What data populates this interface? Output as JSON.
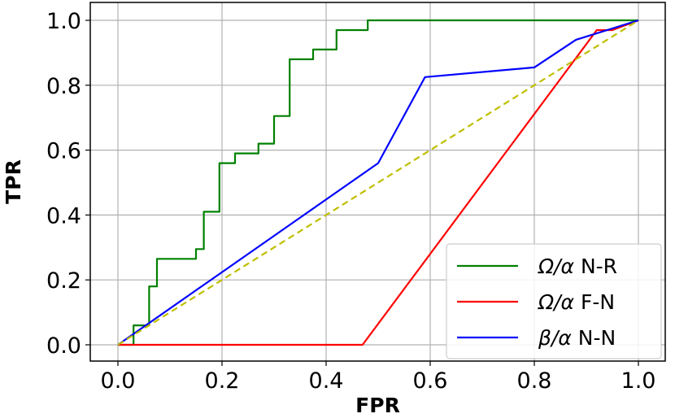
{
  "chart_data": {
    "type": "line",
    "title": "",
    "xlabel": "FPR",
    "ylabel": "TPR",
    "xlim": [
      -0.05,
      1.03
    ],
    "ylim": [
      -0.05,
      1.03
    ],
    "xticks": [
      0.0,
      0.2,
      0.4,
      0.6,
      0.8,
      1.0
    ],
    "yticks": [
      0.0,
      0.2,
      0.4,
      0.6,
      0.8,
      1.0
    ],
    "xtick_labels": [
      "0.0",
      "0.2",
      "0.4",
      "0.6",
      "0.8",
      "1.0"
    ],
    "ytick_labels": [
      "0.0",
      "0.2",
      "0.4",
      "0.6",
      "0.8",
      "1.0"
    ],
    "grid": true,
    "legend_position": "bottom-right",
    "series": [
      {
        "name": "Ω/α N-R",
        "legend_main": "Ω/α",
        "legend_suffix": " N-R",
        "color": "#008000",
        "style": "solid",
        "x": [
          0.0,
          0.03,
          0.03,
          0.06,
          0.06,
          0.075,
          0.075,
          0.15,
          0.15,
          0.165,
          0.165,
          0.195,
          0.195,
          0.225,
          0.225,
          0.27,
          0.27,
          0.3,
          0.3,
          0.33,
          0.33,
          0.375,
          0.375,
          0.42,
          0.42,
          0.48,
          0.48,
          1.0
        ],
        "y": [
          0.0,
          0.0,
          0.06,
          0.06,
          0.18,
          0.18,
          0.265,
          0.265,
          0.295,
          0.295,
          0.41,
          0.41,
          0.56,
          0.56,
          0.59,
          0.59,
          0.62,
          0.62,
          0.705,
          0.705,
          0.88,
          0.88,
          0.91,
          0.91,
          0.97,
          0.97,
          1.0,
          1.0
        ]
      },
      {
        "name": "Ω/α F-N",
        "legend_main": "Ω/α",
        "legend_suffix": " F-N",
        "color": "#ff0000",
        "style": "solid",
        "x": [
          0.0,
          0.47,
          0.92,
          0.95,
          1.0
        ],
        "y": [
          0.0,
          0.0,
          0.97,
          0.97,
          1.0
        ]
      },
      {
        "name": "β/α N-N",
        "legend_main": "β/α",
        "legend_suffix": " N-N",
        "color": "#0000ff",
        "style": "solid",
        "x": [
          0.0,
          0.5,
          0.59,
          0.8,
          0.88,
          1.0
        ],
        "y": [
          0.0,
          0.56,
          0.825,
          0.855,
          0.94,
          1.0
        ]
      },
      {
        "color": "#bfbf00",
        "style": "dashed",
        "in_legend": false,
        "x": [
          0.0,
          1.0
        ],
        "y": [
          0.0,
          1.0
        ]
      }
    ]
  }
}
